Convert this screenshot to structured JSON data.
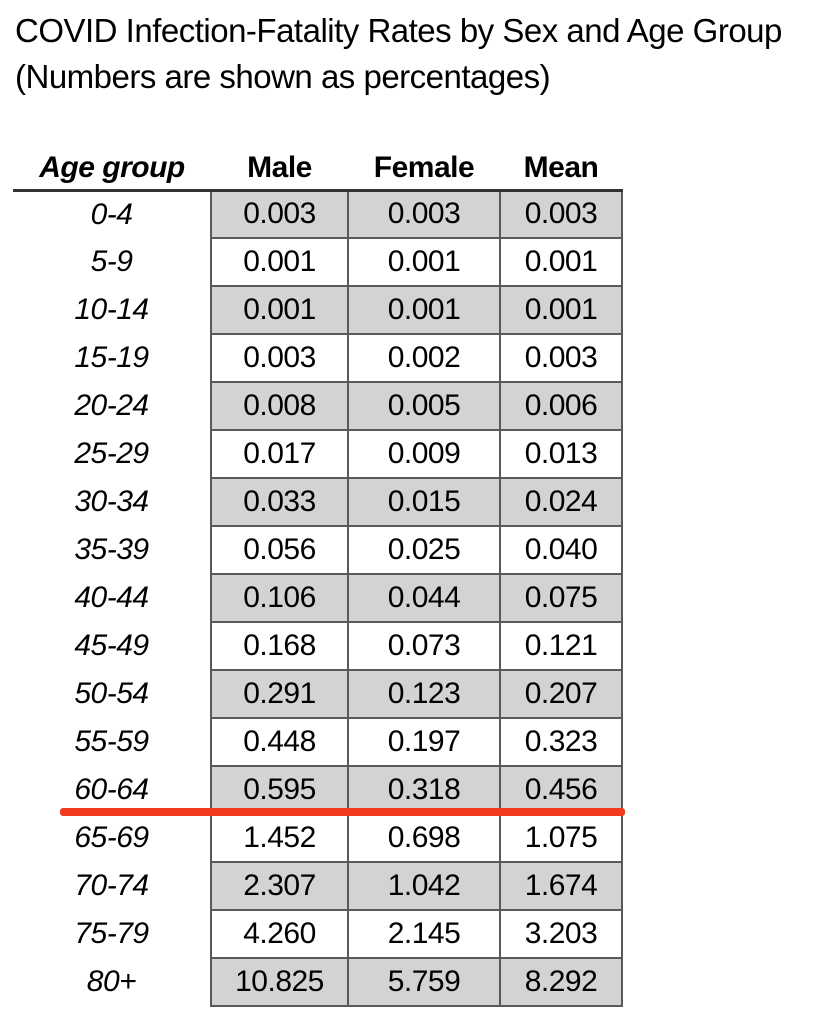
{
  "title": {
    "line1": "COVID Infection-Fatality Rates by Sex and Age Group",
    "line2": "(Numbers are shown as percentages)"
  },
  "table": {
    "columns": [
      "Age group",
      "Male",
      "Female",
      "Mean"
    ],
    "rows": [
      {
        "age": "0-4",
        "male": "0.003",
        "female": "0.003",
        "mean": "0.003"
      },
      {
        "age": "5-9",
        "male": "0.001",
        "female": "0.001",
        "mean": "0.001"
      },
      {
        "age": "10-14",
        "male": "0.001",
        "female": "0.001",
        "mean": "0.001"
      },
      {
        "age": "15-19",
        "male": "0.003",
        "female": "0.002",
        "mean": "0.003"
      },
      {
        "age": "20-24",
        "male": "0.008",
        "female": "0.005",
        "mean": "0.006"
      },
      {
        "age": "25-29",
        "male": "0.017",
        "female": "0.009",
        "mean": "0.013"
      },
      {
        "age": "30-34",
        "male": "0.033",
        "female": "0.015",
        "mean": "0.024"
      },
      {
        "age": "35-39",
        "male": "0.056",
        "female": "0.025",
        "mean": "0.040"
      },
      {
        "age": "40-44",
        "male": "0.106",
        "female": "0.044",
        "mean": "0.075"
      },
      {
        "age": "45-49",
        "male": "0.168",
        "female": "0.073",
        "mean": "0.121"
      },
      {
        "age": "50-54",
        "male": "0.291",
        "female": "0.123",
        "mean": "0.207"
      },
      {
        "age": "55-59",
        "male": "0.448",
        "female": "0.197",
        "mean": "0.323"
      },
      {
        "age": "60-64",
        "male": "0.595",
        "female": "0.318",
        "mean": "0.456"
      },
      {
        "age": "65-69",
        "male": "1.452",
        "female": "0.698",
        "mean": "1.075"
      },
      {
        "age": "70-74",
        "male": "2.307",
        "female": "1.042",
        "mean": "1.674"
      },
      {
        "age": "75-79",
        "male": "4.260",
        "female": "2.145",
        "mean": "3.203"
      },
      {
        "age": "80+",
        "male": "10.825",
        "female": "5.759",
        "mean": "8.292"
      }
    ]
  },
  "chart_data": {
    "type": "table",
    "title": "COVID Infection-Fatality Rates by Sex and Age Group",
    "subtitle": "(Numbers are shown as percentages)",
    "categories": [
      "0-4",
      "5-9",
      "10-14",
      "15-19",
      "20-24",
      "25-29",
      "30-34",
      "35-39",
      "40-44",
      "45-49",
      "50-54",
      "55-59",
      "60-64",
      "65-69",
      "70-74",
      "75-79",
      "80+"
    ],
    "series": [
      {
        "name": "Male",
        "values": [
          0.003,
          0.001,
          0.001,
          0.003,
          0.008,
          0.017,
          0.033,
          0.056,
          0.106,
          0.168,
          0.291,
          0.448,
          0.595,
          1.452,
          2.307,
          4.26,
          10.825
        ]
      },
      {
        "name": "Female",
        "values": [
          0.003,
          0.001,
          0.001,
          0.002,
          0.005,
          0.009,
          0.015,
          0.025,
          0.044,
          0.073,
          0.123,
          0.197,
          0.318,
          0.698,
          1.042,
          2.145,
          5.759
        ]
      },
      {
        "name": "Mean",
        "values": [
          0.003,
          0.001,
          0.001,
          0.003,
          0.006,
          0.013,
          0.024,
          0.04,
          0.075,
          0.121,
          0.207,
          0.323,
          0.456,
          1.075,
          1.674,
          3.203,
          8.292
        ]
      }
    ],
    "annotations": [
      "thick red horizontal divider line drawn between the 60-64 row and the 65-69 row"
    ],
    "layout": "zebra shading on odd rows (0-4, 10-14, 20-24, ...) in light gray; age-group column unbordered and italic; value cells bordered dark gray"
  },
  "colors": {
    "row_shade": "#d3d3d3",
    "grid_border": "#595959",
    "header_rule": "#333333",
    "red_line": "#f23a1e",
    "text": "#000000",
    "background": "#ffffff"
  }
}
